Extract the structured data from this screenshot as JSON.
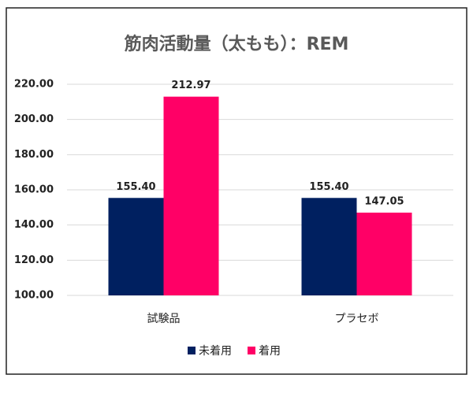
{
  "chart_data": {
    "type": "bar",
    "title": "筋肉活動量（太もも）：REM",
    "categories": [
      "試験品",
      "プラセボ"
    ],
    "series": [
      {
        "name": "未着用",
        "color": "#002060",
        "values": [
          155.4,
          155.4
        ],
        "value_labels": [
          "155.40",
          "155.40"
        ]
      },
      {
        "name": "着用",
        "color": "#ff0066",
        "values": [
          212.97,
          147.05
        ],
        "value_labels": [
          "212.97",
          "147.05"
        ]
      }
    ],
    "ylim": [
      100,
      220
    ],
    "yticks": [
      {
        "value": 100,
        "label": "100.00"
      },
      {
        "value": 120,
        "label": "120.00"
      },
      {
        "value": 140,
        "label": "140.00"
      },
      {
        "value": 160,
        "label": "160.00"
      },
      {
        "value": 180,
        "label": "180.00"
      },
      {
        "value": 200,
        "label": "200.00"
      },
      {
        "value": 220,
        "label": "220.00"
      }
    ],
    "grid": true,
    "legend": "bottom"
  }
}
